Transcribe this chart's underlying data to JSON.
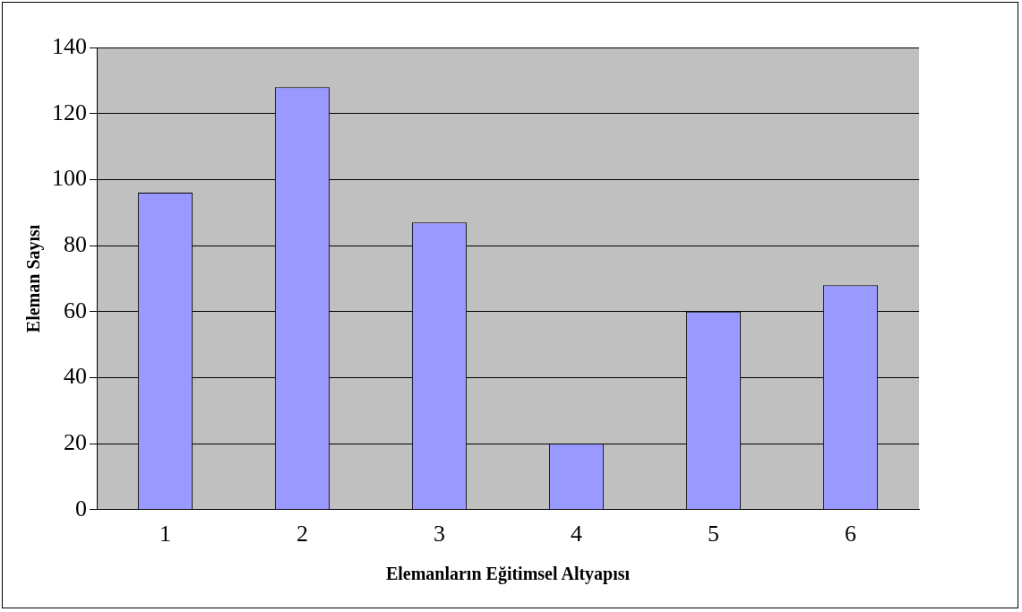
{
  "chart_data": {
    "type": "bar",
    "xlabel": "Elemanların Eğitimsel Altyapısı",
    "ylabel": "Eleman Sayısı",
    "categories": [
      "1",
      "2",
      "3",
      "4",
      "5",
      "6"
    ],
    "values": [
      96,
      128,
      87,
      20,
      60,
      68
    ],
    "color": "#9999ff",
    "ylim": [
      0,
      140
    ],
    "yticks": [
      0,
      20,
      40,
      60,
      80,
      100,
      120,
      140
    ],
    "grid": "y",
    "legend": false
  }
}
